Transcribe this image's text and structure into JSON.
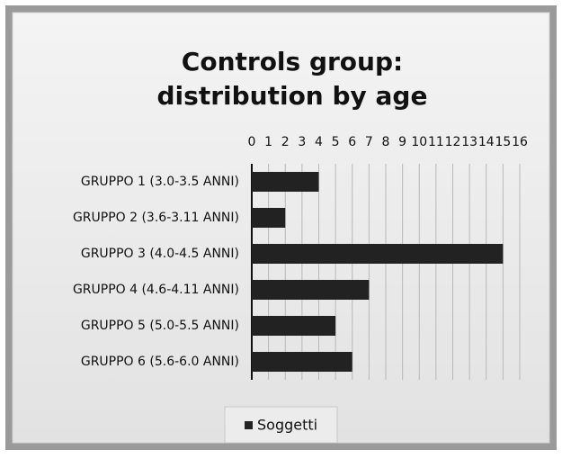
{
  "chart_data": {
    "type": "bar",
    "orientation": "horizontal",
    "title": [
      "Controls group:",
      "distribution by age"
    ],
    "categories": [
      "GRUPPO 1 (3.0-3.5 ANNI)",
      "GRUPPO 2 (3.6-3.11 ANNI)",
      "GRUPPO 3 (4.0-4.5 ANNI)",
      "GRUPPO 4 (4.6-4.11 ANNI)",
      "GRUPPO 5 (5.0-5.5 ANNI)",
      "GRUPPO 6 (5.6-6.0 ANNI)"
    ],
    "series": [
      {
        "name": "Soggetti",
        "color": "#222222",
        "values": [
          4,
          2,
          15,
          7,
          5,
          6
        ]
      }
    ],
    "xlim": [
      0,
      16
    ],
    "xticks": [
      0,
      1,
      2,
      3,
      4,
      5,
      6,
      7,
      8,
      9,
      10,
      11,
      12,
      13,
      14,
      15,
      16
    ],
    "grid": true,
    "legend": "bottom"
  }
}
